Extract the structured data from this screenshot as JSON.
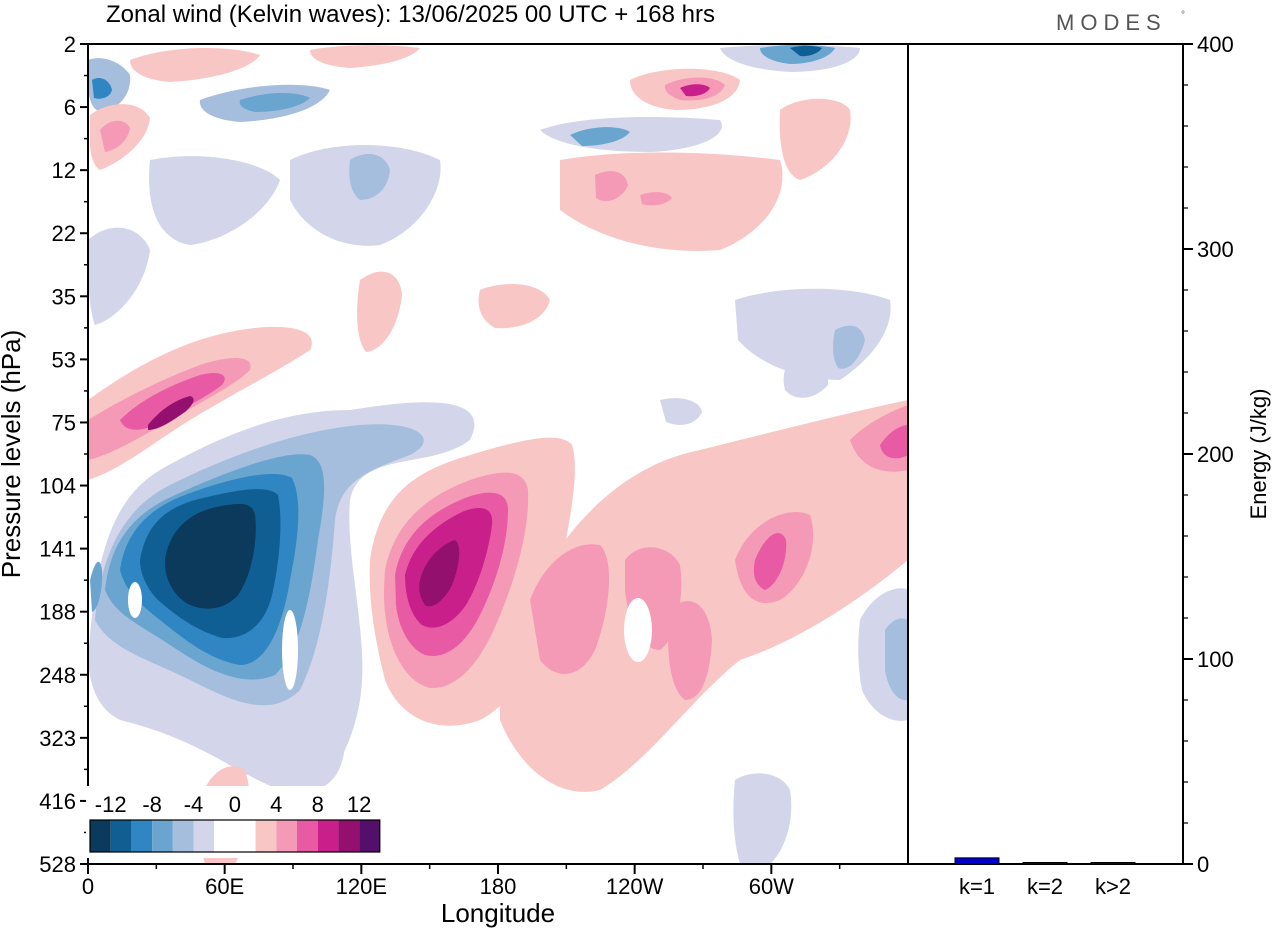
{
  "header": {
    "title": "Zonal wind (Kelvin waves):  13/06/2025  00 UTC  + 168 hrs",
    "brand": "MODES",
    "brand_mark": "°"
  },
  "chart_data": [
    {
      "type": "heatmap",
      "title": "Zonal wind (Kelvin waves):  13/06/2025  00 UTC  + 168 hrs",
      "xlabel": "Longitude",
      "ylabel": "Pressure levels (hPa)",
      "x_ticks": [
        "0",
        "60E",
        "120E",
        "180",
        "120W",
        "60W"
      ],
      "y_ticks": [
        "2",
        "6",
        "12",
        "22",
        "35",
        "53",
        "75",
        "104",
        "141",
        "188",
        "248",
        "323",
        "416",
        "528"
      ],
      "legend": {
        "placement": "bottom-left",
        "labels": [
          "-12",
          "-8",
          "-4",
          "0",
          "4",
          "8",
          "12"
        ],
        "colors": [
          "#0b3a5c",
          "#0f5f95",
          "#2f86c2",
          "#6aa5cf",
          "#a6bedd",
          "#d3d6ea",
          "#ffffff",
          "#ffffff",
          "#f9c6c6",
          "#f59ab6",
          "#e95aa4",
          "#c81f8a",
          "#94106f",
          "#540f6a"
        ]
      },
      "features": [
        {
          "sign": "negative",
          "peak": -14,
          "lon_center": 45,
          "pressure_center": 150
        },
        {
          "sign": "positive",
          "peak": 14,
          "lon_center": 155,
          "pressure_center": 145
        },
        {
          "sign": "positive",
          "peak": 12,
          "lon_center": 30,
          "pressure_center": 68
        },
        {
          "sign": "positive",
          "peak": 8,
          "lon_center": 265,
          "pressure_center": 140
        },
        {
          "sign": "negative",
          "peak": -6,
          "lon_center": 320,
          "pressure_center": 5
        }
      ]
    },
    {
      "type": "bar",
      "ylabel": "Energy (J/kg)",
      "categories": [
        "k=1",
        "k=2",
        "k>2"
      ],
      "values": [
        3,
        0.5,
        0.5
      ],
      "ylim": [
        0,
        400
      ],
      "y_ticks": [
        "0",
        "100",
        "200",
        "300",
        "400"
      ],
      "bar_colors": [
        "#0000cc",
        "#0000cc",
        "#0000cc"
      ]
    }
  ]
}
